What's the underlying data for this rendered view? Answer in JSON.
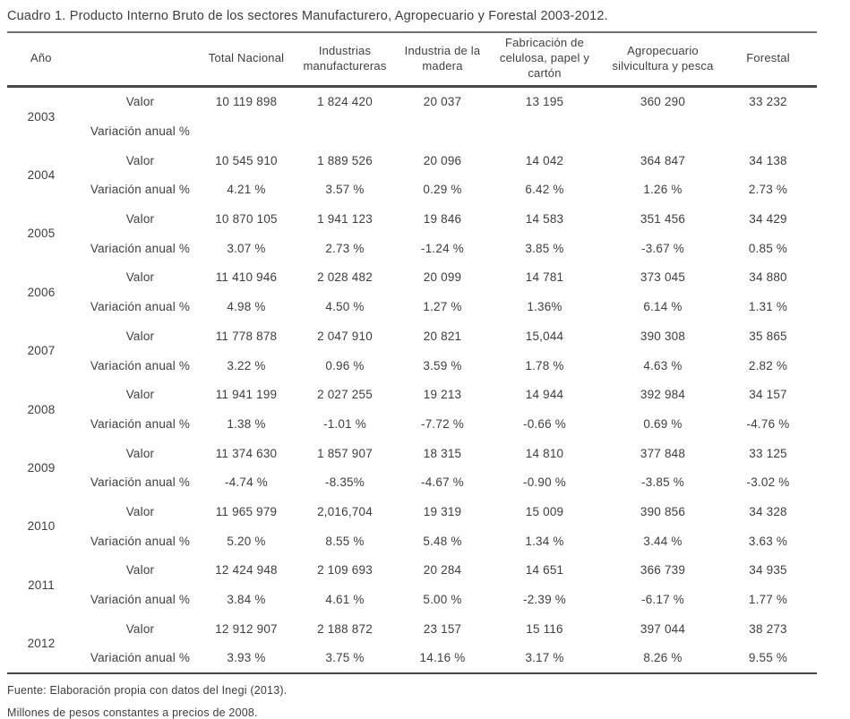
{
  "title": "Cuadro 1. Producto Interno Bruto de los sectores Manufacturero, Agropecuario y Forestal 2003-2012.",
  "table": {
    "columns": [
      "Año",
      "",
      "Total Nacional",
      "Industrias manufactureras",
      "Industria de la madera",
      "Fabricación de celulosa, papel y cartón",
      "Agropecuario silvicultura y pesca",
      "Forestal"
    ],
    "row_labels": {
      "valor": "Valor",
      "variacion": "Variación anual %"
    },
    "years": [
      {
        "year": "2003",
        "valor": [
          "10 119 898",
          "1 824 420",
          "20 037",
          "13 195",
          "360 290",
          "33 232"
        ],
        "variacion": [
          "",
          "",
          "",
          "",
          "",
          ""
        ]
      },
      {
        "year": "2004",
        "valor": [
          "10 545 910",
          "1 889 526",
          "20 096",
          "14 042",
          "364 847",
          "34 138"
        ],
        "variacion": [
          "4.21 %",
          "3.57 %",
          "0.29 %",
          "6.42 %",
          "1.26 %",
          "2.73 %"
        ]
      },
      {
        "year": "2005",
        "valor": [
          "10 870 105",
          "1 941 123",
          "19 846",
          "14 583",
          "351 456",
          "34 429"
        ],
        "variacion": [
          "3.07 %",
          "2.73 %",
          "-1.24 %",
          "3.85 %",
          "-3.67 %",
          "0.85 %"
        ]
      },
      {
        "year": "2006",
        "valor": [
          "11 410 946",
          "2 028 482",
          "20 099",
          "14 781",
          "373 045",
          "34 880"
        ],
        "variacion": [
          "4.98 %",
          "4.50 %",
          "1.27 %",
          "1.36%",
          "6.14 %",
          "1.31 %"
        ]
      },
      {
        "year": "2007",
        "valor": [
          "11 778 878",
          "2 047 910",
          "20 821",
          "15,044",
          "390 308",
          "35 865"
        ],
        "variacion": [
          "3.22 %",
          "0.96 %",
          "3.59 %",
          "1.78 %",
          "4.63 %",
          "2.82 %"
        ]
      },
      {
        "year": "2008",
        "valor": [
          "11 941 199",
          "2 027 255",
          "19 213",
          "14 944",
          "392 984",
          "34 157"
        ],
        "variacion": [
          "1.38 %",
          "-1.01 %",
          "-7.72 %",
          "-0.66 %",
          "0.69 %",
          "-4.76 %"
        ]
      },
      {
        "year": "2009",
        "valor": [
          "11 374 630",
          "1 857 907",
          "18 315",
          "14 810",
          "377 848",
          "33 125"
        ],
        "variacion": [
          "-4.74 %",
          "-8.35%",
          "-4.67 %",
          "-0.90 %",
          "-3.85 %",
          "-3.02 %"
        ]
      },
      {
        "year": "2010",
        "valor": [
          "11 965 979",
          "2,016,704",
          "19 319",
          "15 009",
          "390 856",
          "34 328"
        ],
        "variacion": [
          "5.20 %",
          "8.55 %",
          "5.48 %",
          "1.34 %",
          "3.44 %",
          "3.63 %"
        ]
      },
      {
        "year": "2011",
        "valor": [
          "12 424 948",
          "2 109 693",
          "20 284",
          "14 651",
          "366 739",
          "34 935"
        ],
        "variacion": [
          "3.84 %",
          "4.61 %",
          "5.00 %",
          "-2.39 %",
          "-6.17 %",
          "1.77 %"
        ]
      },
      {
        "year": "2012",
        "valor": [
          "12 912 907",
          "2 188 872",
          "23 157",
          "15 116",
          "397 044",
          "38 273"
        ],
        "variacion": [
          "3.93 %",
          "3.75 %",
          "14.16 %",
          "3.17 %",
          "8.26 %",
          "9.55 %"
        ]
      }
    ]
  },
  "footnotes": [
    "Fuente: Elaboración propia con datos del Inegi (2013).",
    "Millones de pesos constantes a precios de 2008."
  ]
}
